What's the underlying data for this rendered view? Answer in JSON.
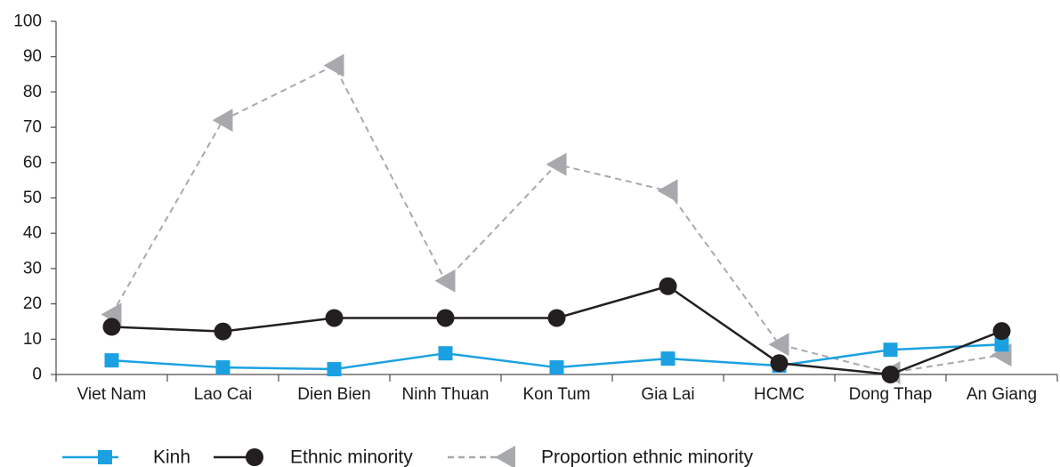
{
  "chart_data": {
    "type": "line",
    "categories": [
      "Viet Nam",
      "Lao Cai",
      "Dien Bien",
      "Ninh Thuan",
      "Kon Tum",
      "Gia Lai",
      "HCMC",
      "Dong Thap",
      "An Giang"
    ],
    "ylim": [
      0,
      100
    ],
    "yticks": [
      "0",
      "10",
      "20",
      "30",
      "40",
      "50",
      "60",
      "70",
      "80",
      "90",
      "100"
    ],
    "grid": false,
    "legend_position": "bottom-left",
    "series": [
      {
        "name": "Kinh",
        "color": "#1BA1E2",
        "marker": "square",
        "line_style": "solid",
        "values": [
          4,
          2,
          1.5,
          6,
          2,
          4.5,
          2.5,
          7,
          8.5
        ]
      },
      {
        "name": "Ethnic minority",
        "color": "#231F20",
        "marker": "circle",
        "line_style": "solid",
        "values": [
          13.5,
          12.2,
          16,
          16,
          16,
          25,
          3.2,
          0,
          12.3
        ]
      },
      {
        "name": "Proportion ethnic minority",
        "color": "#A7A9AC",
        "marker": "triangle-left",
        "line_style": "dashed",
        "values": [
          17,
          72,
          87.5,
          26.5,
          59.5,
          52,
          8.5,
          0.5,
          5.5
        ]
      }
    ]
  }
}
